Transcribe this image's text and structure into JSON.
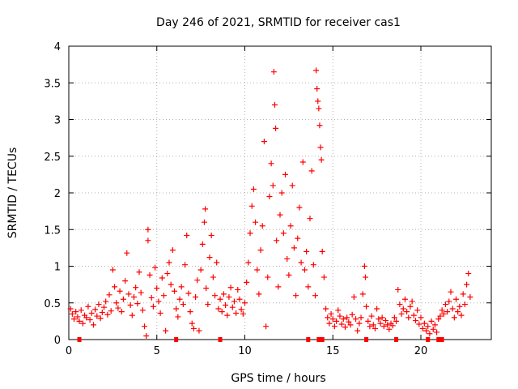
{
  "chart_data": {
    "type": "scatter",
    "title": "Day 246 of 2021, SRMTID for receiver cas1",
    "xlabel": "GPS time / hours",
    "ylabel": "SRMTID / TECUs",
    "xlim": [
      0,
      24
    ],
    "ylim": [
      0,
      4
    ],
    "xticks": [
      0,
      5,
      10,
      15,
      20
    ],
    "yticks": [
      0,
      0.5,
      1,
      1.5,
      2,
      2.5,
      3,
      3.5,
      4
    ],
    "xtick_labels": [
      "0",
      "5",
      "10",
      "15",
      "20"
    ],
    "ytick_labels": [
      "0",
      "0.5",
      "1",
      "1.5",
      "2",
      "2.5",
      "3",
      "3.5",
      "4"
    ],
    "grid": true,
    "marker": "+",
    "color": "#ff0000",
    "series": [
      {
        "name": "SRMTID",
        "points": [
          [
            0.1,
            0.42
          ],
          [
            0.2,
            0.35
          ],
          [
            0.3,
            0.28
          ],
          [
            0.4,
            0.38
          ],
          [
            0.5,
            0.31
          ],
          [
            0.6,
            0.25
          ],
          [
            0.7,
            0.4
          ],
          [
            0.8,
            0.22
          ],
          [
            0.9,
            0.33
          ],
          [
            1.0,
            0.3
          ],
          [
            1.1,
            0.45
          ],
          [
            1.2,
            0.27
          ],
          [
            1.3,
            0.36
          ],
          [
            1.4,
            0.2
          ],
          [
            1.5,
            0.41
          ],
          [
            1.6,
            0.32
          ],
          [
            1.7,
            0.48
          ],
          [
            1.8,
            0.29
          ],
          [
            1.9,
            0.37
          ],
          [
            2.0,
            0.44
          ],
          [
            2.1,
            0.52
          ],
          [
            2.2,
            0.34
          ],
          [
            2.3,
            0.61
          ],
          [
            2.4,
            0.39
          ],
          [
            2.5,
            0.95
          ],
          [
            2.6,
            0.72
          ],
          [
            2.7,
            0.5
          ],
          [
            2.8,
            0.43
          ],
          [
            2.9,
            0.66
          ],
          [
            3.0,
            0.38
          ],
          [
            3.1,
            0.55
          ],
          [
            3.2,
            0.8
          ],
          [
            3.3,
            1.18
          ],
          [
            3.4,
            0.62
          ],
          [
            3.5,
            0.47
          ],
          [
            3.6,
            0.33
          ],
          [
            3.7,
            0.58
          ],
          [
            3.8,
            0.71
          ],
          [
            3.9,
            0.49
          ],
          [
            4.0,
            0.92
          ],
          [
            4.1,
            0.64
          ],
          [
            4.2,
            0.4
          ],
          [
            4.3,
            0.18
          ],
          [
            4.4,
            0.05
          ],
          [
            4.5,
            1.35
          ],
          [
            4.5,
            1.5
          ],
          [
            4.6,
            0.88
          ],
          [
            4.7,
            0.57
          ],
          [
            4.8,
            0.45
          ],
          [
            4.9,
            0.98
          ],
          [
            5.0,
            0.7
          ],
          [
            5.1,
            0.52
          ],
          [
            5.2,
            0.36
          ],
          [
            5.3,
            0.84
          ],
          [
            5.4,
            0.6
          ],
          [
            5.5,
            0.12
          ],
          [
            5.6,
            0.9
          ],
          [
            5.7,
            1.05
          ],
          [
            5.8,
            0.75
          ],
          [
            5.9,
            1.22
          ],
          [
            6.0,
            0.66
          ],
          [
            6.1,
            0.42
          ],
          [
            6.2,
            0.31
          ],
          [
            6.3,
            0.55
          ],
          [
            6.4,
            0.72
          ],
          [
            6.5,
            0.48
          ],
          [
            6.6,
            1.02
          ],
          [
            6.7,
            1.42
          ],
          [
            6.8,
            0.63
          ],
          [
            6.9,
            0.38
          ],
          [
            7.0,
            0.22
          ],
          [
            7.1,
            0.15
          ],
          [
            7.2,
            0.58
          ],
          [
            7.3,
            0.81
          ],
          [
            7.4,
            0.12
          ],
          [
            7.5,
            0.95
          ],
          [
            7.6,
            1.3
          ],
          [
            7.7,
            1.6
          ],
          [
            7.75,
            1.78
          ],
          [
            7.8,
            0.7
          ],
          [
            7.9,
            0.48
          ],
          [
            8.0,
            1.12
          ],
          [
            8.1,
            1.42
          ],
          [
            8.2,
            0.85
          ],
          [
            8.3,
            0.6
          ],
          [
            8.4,
            1.05
          ],
          [
            8.5,
            0.42
          ],
          [
            8.6,
            0.55
          ],
          [
            8.7,
            0.38
          ],
          [
            8.8,
            0.62
          ],
          [
            8.9,
            0.47
          ],
          [
            9.0,
            0.33
          ],
          [
            9.1,
            0.58
          ],
          [
            9.2,
            0.71
          ],
          [
            9.3,
            0.44
          ],
          [
            9.4,
            0.52
          ],
          [
            9.5,
            0.36
          ],
          [
            9.6,
            0.68
          ],
          [
            9.7,
            0.55
          ],
          [
            9.8,
            0.41
          ],
          [
            9.9,
            0.35
          ],
          [
            10.0,
            0.5
          ],
          [
            10.1,
            0.78
          ],
          [
            10.2,
            1.05
          ],
          [
            10.3,
            1.45
          ],
          [
            10.4,
            1.82
          ],
          [
            10.5,
            2.05
          ],
          [
            10.6,
            1.6
          ],
          [
            10.7,
            0.95
          ],
          [
            10.8,
            0.62
          ],
          [
            10.9,
            1.22
          ],
          [
            11.0,
            1.55
          ],
          [
            11.1,
            2.7
          ],
          [
            11.2,
            0.18
          ],
          [
            11.3,
            0.85
          ],
          [
            11.4,
            1.95
          ],
          [
            11.5,
            2.4
          ],
          [
            11.6,
            2.1
          ],
          [
            11.65,
            3.65
          ],
          [
            11.7,
            3.2
          ],
          [
            11.75,
            2.88
          ],
          [
            11.8,
            1.35
          ],
          [
            11.9,
            0.72
          ],
          [
            12.0,
            1.7
          ],
          [
            12.1,
            2.0
          ],
          [
            12.2,
            1.45
          ],
          [
            12.3,
            2.25
          ],
          [
            12.4,
            1.1
          ],
          [
            12.5,
            0.88
          ],
          [
            12.6,
            1.55
          ],
          [
            12.7,
            2.1
          ],
          [
            12.8,
            1.25
          ],
          [
            12.9,
            0.6
          ],
          [
            13.0,
            1.38
          ],
          [
            13.1,
            1.8
          ],
          [
            13.2,
            1.05
          ],
          [
            13.3,
            2.42
          ],
          [
            13.4,
            0.95
          ],
          [
            13.5,
            1.2
          ],
          [
            13.6,
            0.72
          ],
          [
            13.7,
            1.65
          ],
          [
            13.8,
            2.3
          ],
          [
            13.9,
            1.02
          ],
          [
            14.0,
            0.6
          ],
          [
            14.05,
            3.67
          ],
          [
            14.1,
            3.42
          ],
          [
            14.15,
            3.25
          ],
          [
            14.2,
            3.15
          ],
          [
            14.25,
            2.92
          ],
          [
            14.3,
            2.62
          ],
          [
            14.35,
            2.45
          ],
          [
            14.4,
            1.2
          ],
          [
            14.5,
            0.85
          ],
          [
            14.6,
            0.42
          ],
          [
            14.7,
            0.3
          ],
          [
            14.8,
            0.22
          ],
          [
            14.9,
            0.35
          ],
          [
            15.0,
            0.28
          ],
          [
            15.1,
            0.18
          ],
          [
            15.2,
            0.25
          ],
          [
            15.3,
            0.4
          ],
          [
            15.4,
            0.32
          ],
          [
            15.5,
            0.21
          ],
          [
            15.6,
            0.28
          ],
          [
            15.7,
            0.17
          ],
          [
            15.8,
            0.3
          ],
          [
            15.9,
            0.24
          ],
          [
            16.0,
            0.2
          ],
          [
            16.1,
            0.34
          ],
          [
            16.2,
            0.58
          ],
          [
            16.3,
            0.28
          ],
          [
            16.4,
            0.12
          ],
          [
            16.5,
            0.22
          ],
          [
            16.6,
            0.3
          ],
          [
            16.7,
            0.62
          ],
          [
            16.8,
            1.0
          ],
          [
            16.85,
            0.85
          ],
          [
            16.9,
            0.45
          ],
          [
            17.0,
            0.25
          ],
          [
            17.1,
            0.18
          ],
          [
            17.2,
            0.32
          ],
          [
            17.3,
            0.2
          ],
          [
            17.4,
            0.15
          ],
          [
            17.5,
            0.42
          ],
          [
            17.6,
            0.28
          ],
          [
            17.7,
            0.22
          ],
          [
            17.8,
            0.3
          ],
          [
            17.9,
            0.18
          ],
          [
            18.0,
            0.26
          ],
          [
            18.1,
            0.2
          ],
          [
            18.2,
            0.14
          ],
          [
            18.3,
            0.22
          ],
          [
            18.4,
            0.19
          ],
          [
            18.5,
            0.3
          ],
          [
            18.6,
            0.25
          ],
          [
            18.7,
            0.68
          ],
          [
            18.8,
            0.48
          ],
          [
            18.9,
            0.35
          ],
          [
            19.0,
            0.42
          ],
          [
            19.1,
            0.55
          ],
          [
            19.2,
            0.38
          ],
          [
            19.3,
            0.3
          ],
          [
            19.4,
            0.45
          ],
          [
            19.5,
            0.52
          ],
          [
            19.6,
            0.33
          ],
          [
            19.7,
            0.26
          ],
          [
            19.8,
            0.4
          ],
          [
            19.9,
            0.21
          ],
          [
            20.0,
            0.3
          ],
          [
            20.1,
            0.15
          ],
          [
            20.2,
            0.22
          ],
          [
            20.3,
            0.12
          ],
          [
            20.4,
            0.18
          ],
          [
            20.5,
            0.08
          ],
          [
            20.6,
            0.25
          ],
          [
            20.7,
            0.14
          ],
          [
            20.8,
            0.2
          ],
          [
            20.9,
            0.1
          ],
          [
            21.0,
            0.28
          ],
          [
            21.1,
            0.32
          ],
          [
            21.2,
            0.4
          ],
          [
            21.3,
            0.35
          ],
          [
            21.4,
            0.48
          ],
          [
            21.5,
            0.38
          ],
          [
            21.6,
            0.52
          ],
          [
            21.7,
            0.65
          ],
          [
            21.8,
            0.42
          ],
          [
            21.9,
            0.3
          ],
          [
            22.0,
            0.55
          ],
          [
            22.1,
            0.38
          ],
          [
            22.2,
            0.45
          ],
          [
            22.3,
            0.33
          ],
          [
            22.4,
            0.62
          ],
          [
            22.5,
            0.48
          ],
          [
            22.6,
            0.75
          ],
          [
            22.7,
            0.9
          ],
          [
            22.8,
            0.58
          ]
        ]
      }
    ],
    "gap_markers_x": [
      0.6,
      6.1,
      8.6,
      13.6,
      14.2,
      14.4,
      16.9,
      18.6,
      20.4,
      21.0,
      21.2
    ]
  }
}
